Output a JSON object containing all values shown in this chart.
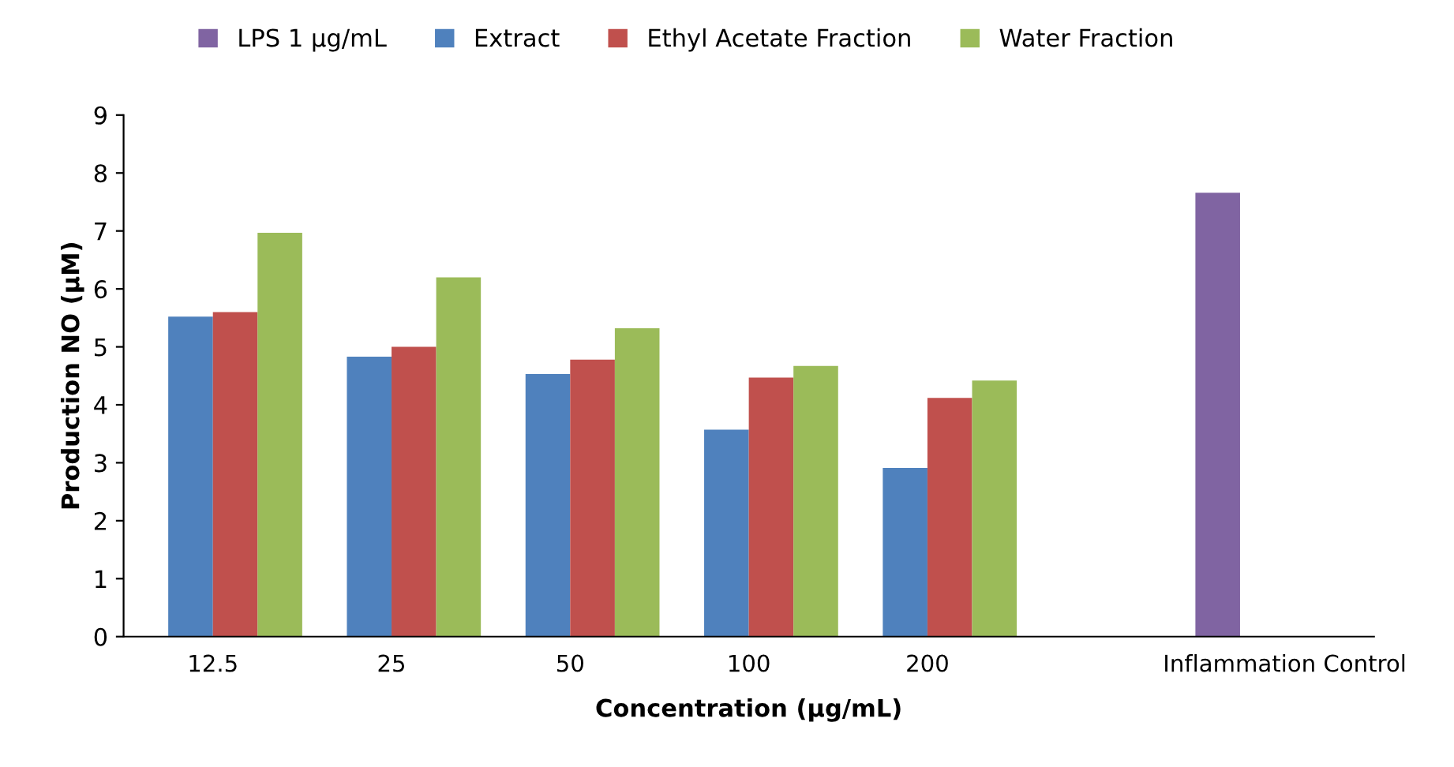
{
  "chart_data": {
    "type": "bar",
    "xlabel": "Concentration (µg/mL)",
    "ylabel": "Production NO (µM)",
    "categories": [
      "12.5",
      "25",
      "50",
      "100",
      "200",
      null,
      "Inflammation Control"
    ],
    "series": [
      {
        "name": "LPS 1 µg/mL",
        "color": "#8064a2",
        "values": [
          null,
          null,
          null,
          null,
          null,
          null,
          7.66
        ]
      },
      {
        "name": "Extract",
        "color": "#4f81bd",
        "values": [
          5.52,
          4.83,
          4.53,
          3.57,
          2.91,
          null,
          null
        ]
      },
      {
        "name": "Ethyl Acetate Fraction",
        "color": "#c0504d",
        "values": [
          5.6,
          5.0,
          4.78,
          4.47,
          4.12,
          null,
          null
        ]
      },
      {
        "name": "Water Fraction",
        "color": "#9bbb59",
        "values": [
          6.97,
          6.2,
          5.32,
          4.67,
          4.42,
          null,
          null
        ]
      }
    ],
    "ylim": [
      0,
      9
    ],
    "yticks": [
      0,
      1,
      2,
      3,
      4,
      5,
      6,
      7,
      8,
      9
    ],
    "grid": false,
    "legend": "top"
  }
}
